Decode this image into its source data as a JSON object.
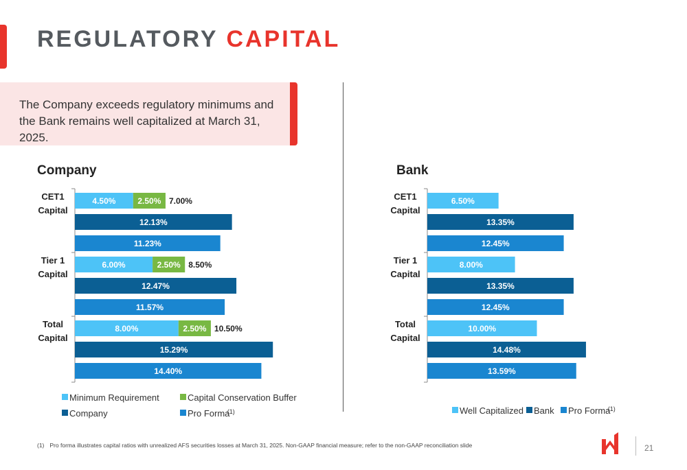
{
  "page": {
    "title_main": "REGULATORY",
    "title_accent": "CAPITAL",
    "callout": "The Company exceeds regulatory minimums and the Bank remains well capitalized at March 31, 2025.",
    "footnote_number": "(1)",
    "footnote_text": "Pro forma illustrates capital ratios with unrealized AFS securities losses at March 31, 2025. Non-GAAP financial measure; refer to the non-GAAP reconciliation slide",
    "page_number": "21"
  },
  "colors": {
    "brand_red": "#e8342c",
    "light_blue": "#4dc3f7",
    "green": "#78b843",
    "dark_blue": "#0b5f94",
    "mid_blue": "#1a86d0"
  },
  "chart_data": [
    {
      "type": "bar",
      "orientation": "horizontal",
      "title": "Company",
      "categories": [
        "CET1 Capital",
        "Tier 1 Capital",
        "Total Capital"
      ],
      "series": [
        {
          "name": "Minimum Requirement",
          "values": [
            4.5,
            6.0,
            8.0
          ],
          "labels": [
            "4.50%",
            "6.00%",
            "8.00%"
          ],
          "color": "#4dc3f7",
          "stack": "req"
        },
        {
          "name": "Capital Conservation Buffer",
          "values": [
            2.5,
            2.5,
            2.5
          ],
          "labels": [
            "2.50%",
            "2.50%",
            "2.50%"
          ],
          "color": "#78b843",
          "stack": "req"
        },
        {
          "name": "Company",
          "values": [
            12.13,
            12.47,
            15.29
          ],
          "labels": [
            "12.13%",
            "12.47%",
            "15.29%"
          ],
          "color": "#0b5f94"
        },
        {
          "name": "Pro Forma",
          "values": [
            11.23,
            11.57,
            14.4
          ],
          "labels": [
            "11.23%",
            "11.57%",
            "14.40%"
          ],
          "color": "#1a86d0",
          "footnote": "(1)"
        }
      ],
      "stack_totals": [
        "7.00%",
        "8.50%",
        "10.50%"
      ],
      "xlim": [
        0,
        20
      ],
      "legend_position": "bottom"
    },
    {
      "type": "bar",
      "orientation": "horizontal",
      "title": "Bank",
      "categories": [
        "CET1 Capital",
        "Tier 1 Capital",
        "Total Capital"
      ],
      "series": [
        {
          "name": "Well Capitalized",
          "values": [
            6.5,
            8.0,
            10.0
          ],
          "labels": [
            "6.50%",
            "8.00%",
            "10.00%"
          ],
          "color": "#4dc3f7"
        },
        {
          "name": "Bank",
          "values": [
            13.35,
            13.35,
            14.48
          ],
          "labels": [
            "13.35%",
            "13.35%",
            "14.48%"
          ],
          "color": "#0b5f94"
        },
        {
          "name": "Pro Forma",
          "values": [
            12.45,
            12.45,
            13.59
          ],
          "labels": [
            "12.45%",
            "12.45%",
            "13.59%"
          ],
          "color": "#1a86d0",
          "footnote": "(1)"
        }
      ],
      "xlim": [
        0,
        16
      ],
      "legend_position": "bottom"
    }
  ]
}
